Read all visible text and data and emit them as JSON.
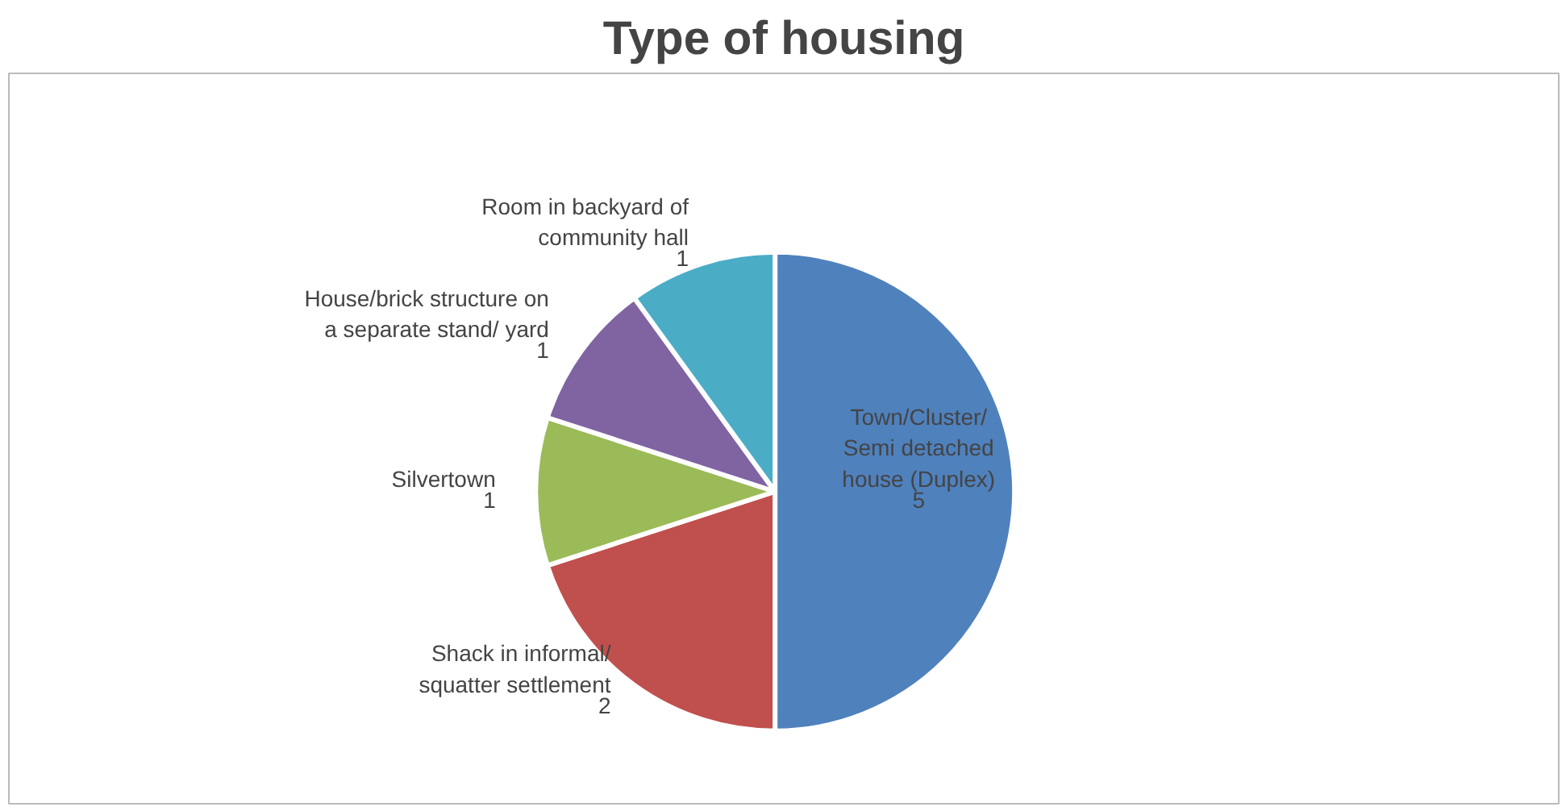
{
  "chart_data": {
    "type": "pie",
    "title": "Type of housing",
    "categories": [
      "Town/Cluster/ Semi detached house (Duplex)",
      "Shack in informal/ squatter settlement",
      "Silvertown",
      "House/brick structure on a separate stand/ yard",
      "Room in backyard of community hall"
    ],
    "values": [
      5,
      2,
      1,
      1,
      1
    ],
    "colors": [
      "#4f81bd",
      "#c0504d",
      "#9bbb59",
      "#8064a2",
      "#4bacc6"
    ],
    "data_labels": true,
    "legend": false
  }
}
